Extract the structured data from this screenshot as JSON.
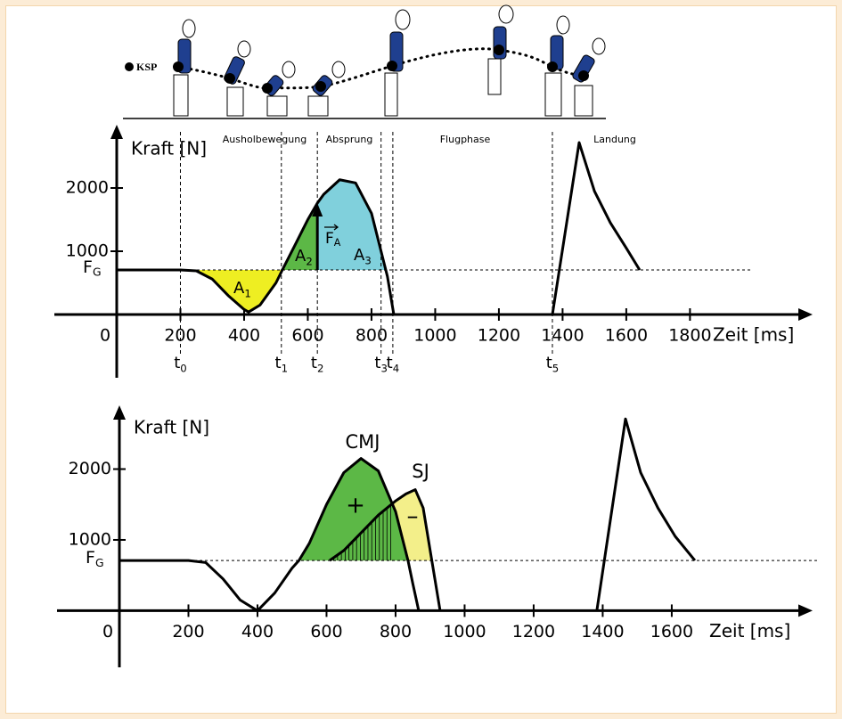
{
  "chart_data": [
    {
      "type": "line",
      "ylabel": "Kraft [N]",
      "xlabel": "Zeit [ms]",
      "xlim": [
        0,
        2185
      ],
      "ylim": [
        -1000,
        3000
      ],
      "xticks": [
        0,
        200,
        400,
        600,
        800,
        1000,
        1200,
        1400,
        1600,
        1800
      ],
      "yticks": [
        1000,
        2000
      ],
      "fg": {
        "value": 704,
        "label": "F",
        "sub": "G"
      },
      "phases": [
        "Ausholbewegung",
        "Absprung",
        "Flugphase",
        "Landung"
      ],
      "markers": [
        {
          "label": "t",
          "sub": "0",
          "x": 200
        },
        {
          "label": "t",
          "sub": "1",
          "x": 517
        },
        {
          "label": "t",
          "sub": "2",
          "x": 630
        },
        {
          "label": "t",
          "sub": "3",
          "x": 830
        },
        {
          "label": "t",
          "sub": "4",
          "x": 867
        },
        {
          "label": "t",
          "sub": "5",
          "x": 1368
        }
      ],
      "areas": [
        {
          "label": "A",
          "sub": "1",
          "from": 230,
          "to": 520,
          "color": "#eeee22"
        },
        {
          "label": "A",
          "sub": "2",
          "from": 520,
          "to": 630,
          "color": "#5cb846"
        },
        {
          "label": "A",
          "sub": "3",
          "from": 630,
          "to": 842,
          "color": "#80d0dc"
        }
      ],
      "force_label": {
        "label": "F",
        "sub": "A"
      },
      "series": [
        {
          "color": "#000000",
          "x": [
            0,
            200,
            250,
            300,
            350,
            400,
            414,
            450,
            500,
            520,
            560,
            600,
            630,
            650,
            700,
            750,
            800,
            830,
            850,
            870,
            1100,
            1368,
            1452,
            1500,
            1550,
            1600,
            1642
          ],
          "values": [
            704,
            704,
            690,
            560,
            300,
            80,
            40,
            150,
            500,
            704,
            1100,
            1500,
            1760,
            1900,
            2130,
            2080,
            1600,
            1000,
            600,
            0,
            null,
            0,
            2718,
            1950,
            1450,
            1050,
            704
          ]
        }
      ]
    },
    {
      "type": "line",
      "ylabel": "Kraft [N]",
      "xlabel": "Zeit [ms]",
      "xlim": [
        0,
        2008
      ],
      "ylim": [
        -800,
        2900
      ],
      "xticks": [
        0,
        200,
        400,
        600,
        800,
        1000,
        1200,
        1400,
        1600
      ],
      "yticks": [
        1000,
        2000
      ],
      "fg": {
        "value": 709,
        "label": "F",
        "sub": "G"
      },
      "areas": [
        {
          "label": "–",
          "from": 609,
          "to": 905,
          "color": "#f3ef8a",
          "series": 1
        },
        {
          "label": "+",
          "from": 520,
          "to": 836,
          "color": "#5cb846",
          "series": 0
        }
      ],
      "series": [
        {
          "name": "CMJ",
          "color": "#000000",
          "x": [
            0,
            200,
            250,
            300,
            350,
            400,
            450,
            500,
            520,
            550,
            600,
            650,
            700,
            750,
            800,
            836,
            850,
            867,
            1100,
            1383,
            1466,
            1510,
            1560,
            1610,
            1667
          ],
          "values": [
            709,
            709,
            680,
            450,
            150,
            0,
            250,
            600,
            709,
            950,
            1500,
            1950,
            2150,
            1975,
            1400,
            709,
            380,
            0,
            null,
            0,
            2709,
            1950,
            1450,
            1050,
            709
          ]
        },
        {
          "name": "SJ",
          "color": "#000000",
          "x": [
            609,
            650,
            700,
            750,
            800,
            830,
            857,
            880,
            905,
            929
          ],
          "values": [
            709,
            850,
            1100,
            1350,
            1550,
            1650,
            1710,
            1450,
            709,
            0
          ]
        }
      ]
    }
  ],
  "illustration": {
    "label": "KSP"
  }
}
